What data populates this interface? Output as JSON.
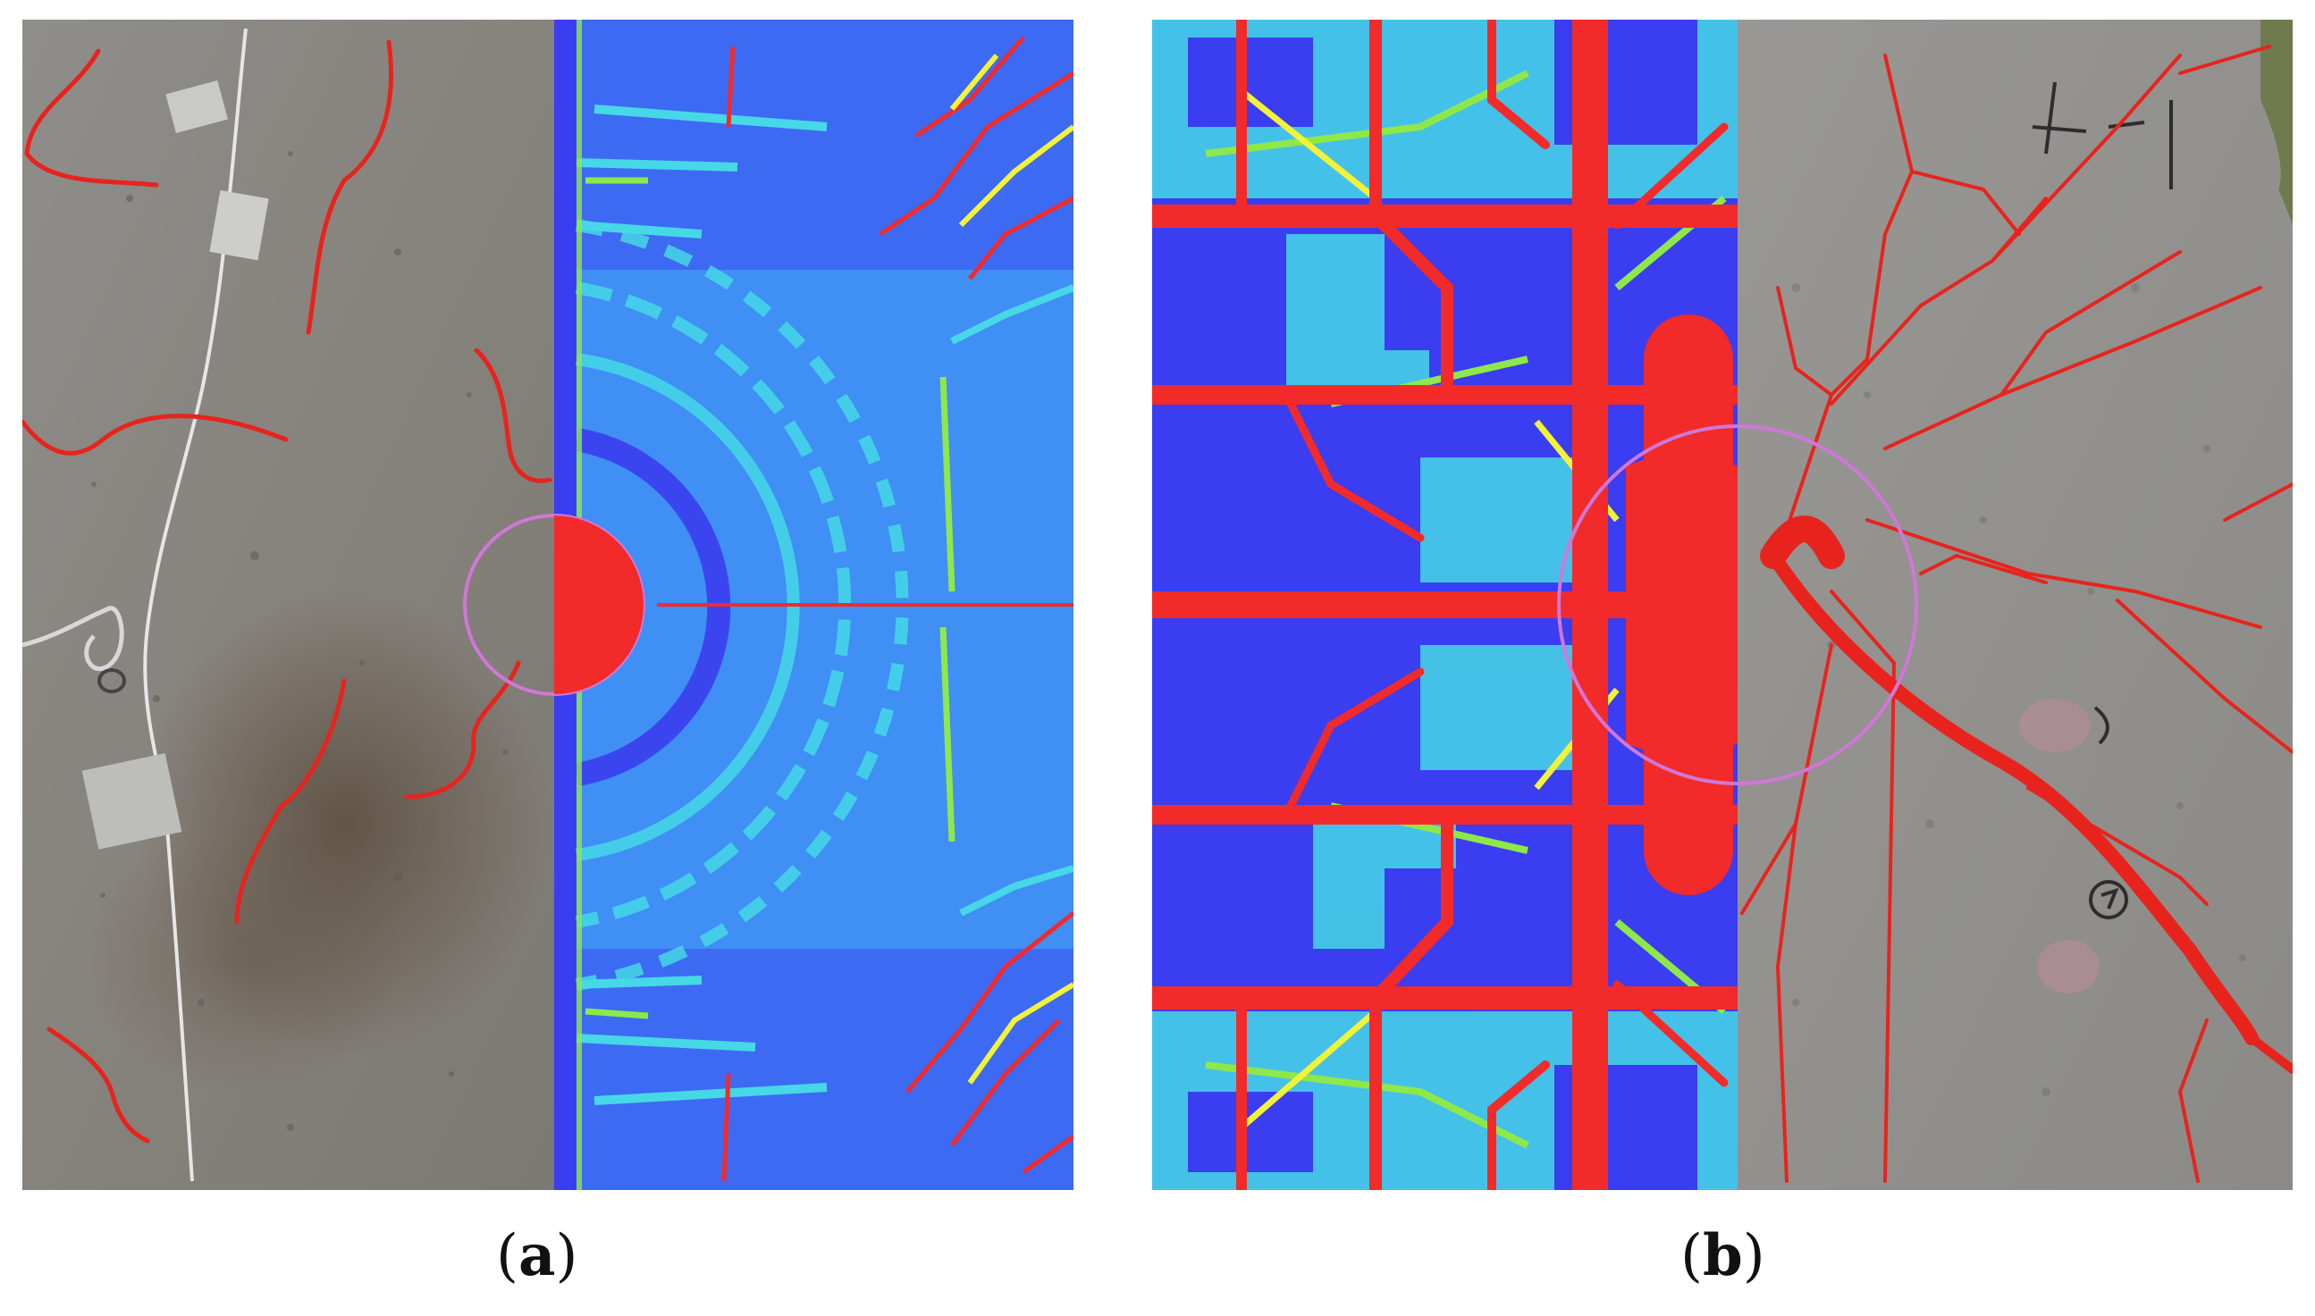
{
  "figure": {
    "panels": [
      {
        "id": "a",
        "caption_open": "(",
        "caption_letter": "a",
        "caption_close": ")",
        "photo_side": "left",
        "simulation_side": "right",
        "crack_overlay_color": "#e8231d",
        "circle_color": "#d077d8"
      },
      {
        "id": "b",
        "caption_open": "(",
        "caption_letter": "b",
        "caption_close": ")",
        "photo_side": "right",
        "simulation_side": "left",
        "crack_overlay_color": "#e8231d",
        "circle_color": "#d077d8",
        "photo_marks": [
          "4-1",
          "3",
          "4"
        ]
      }
    ],
    "colormap": {
      "low": "#3a3df0",
      "mid_low": "#3f8ff4",
      "mid": "#46d8e6",
      "mid_high": "#8ee84a",
      "high": "#f2f23a",
      "max": "#f22a2a"
    },
    "concrete_color": "#8e8d8a"
  }
}
